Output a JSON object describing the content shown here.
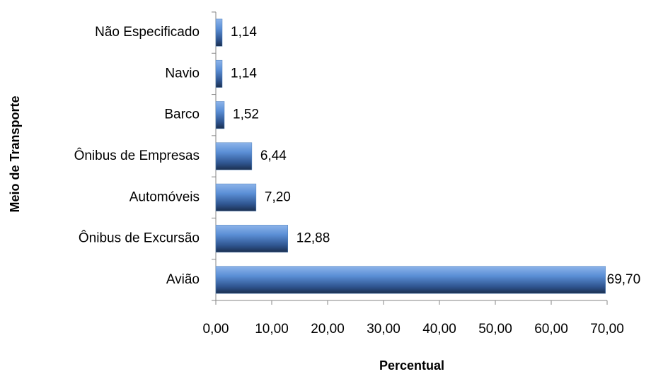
{
  "chart_data": {
    "type": "barh",
    "x_label": "Percentual",
    "y_label": "Meio de Transporte",
    "categories": [
      "Não Especificado",
      "Navio",
      "Barco",
      "Ônibus de Empresas",
      "Automóveis",
      "Ônibus de Excursão",
      "Avião"
    ],
    "values": [
      1.14,
      1.14,
      1.52,
      6.44,
      7.2,
      12.88,
      69.7
    ],
    "value_labels": [
      "1,14",
      "1,14",
      "1,52",
      "6,44",
      "7,20",
      "12,88",
      "69,70"
    ],
    "color": "#4f81bd",
    "xlim": [
      0,
      70
    ],
    "xticks": [
      {
        "value": 0,
        "label": "0,00"
      },
      {
        "value": 10,
        "label": "10,00"
      },
      {
        "value": 20,
        "label": "20,00"
      },
      {
        "value": 30,
        "label": "30,00"
      },
      {
        "value": 40,
        "label": "40,00"
      },
      {
        "value": 50,
        "label": "50,00"
      },
      {
        "value": 60,
        "label": "60,00"
      },
      {
        "value": 70,
        "label": "70,00"
      }
    ],
    "grid": false
  }
}
